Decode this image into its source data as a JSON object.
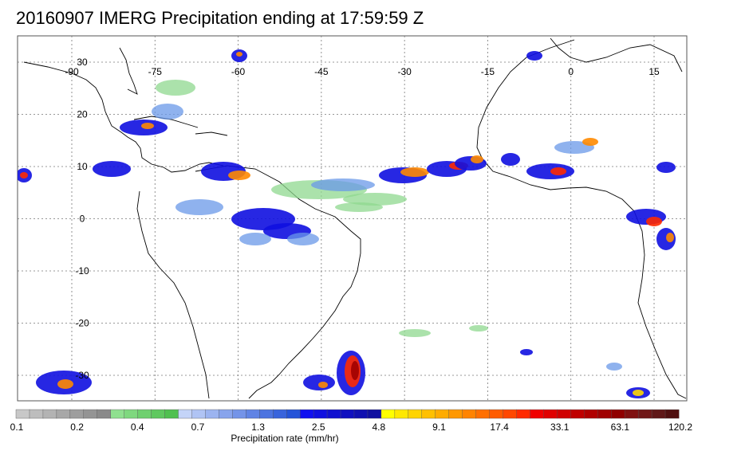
{
  "title": "20160907 IMERG Precipitation ending at 17:59:59 Z",
  "map": {
    "lon_range": [
      -100,
      30
    ],
    "lat_range": [
      -38,
      35
    ],
    "lon_ticks": [
      {
        "value": -90,
        "label": "-90"
      },
      {
        "value": -75,
        "label": "-75"
      },
      {
        "value": -60,
        "label": "-60"
      },
      {
        "value": -45,
        "label": "-45"
      },
      {
        "value": -30,
        "label": "-30"
      },
      {
        "value": -15,
        "label": "-15"
      },
      {
        "value": 0,
        "label": "0"
      },
      {
        "value": 15,
        "label": "15"
      }
    ],
    "lat_ticks": [
      {
        "value": 30,
        "label": "30"
      },
      {
        "value": 20,
        "label": "20"
      },
      {
        "value": 10,
        "label": "10"
      },
      {
        "value": 0,
        "label": "0"
      },
      {
        "value": -10,
        "label": "-10"
      },
      {
        "value": -20,
        "label": "-20"
      },
      {
        "value": -30,
        "label": "-30"
      }
    ],
    "grid": "dotted"
  },
  "colorbar": {
    "label": "Precipitation rate (mm/hr)",
    "tick_labels": [
      "0.1",
      "0.2",
      "0.4",
      "0.7",
      "1.3",
      "2.5",
      "4.8",
      "9.1",
      "17.4",
      "33.1",
      "63.1",
      "120.2"
    ],
    "colors": [
      "#c8c8c8",
      "#bdbdbd",
      "#b3b3b3",
      "#a8a8a8",
      "#9e9e9e",
      "#949494",
      "#8a8a8a",
      "#8fe08f",
      "#7fd87f",
      "#6fd06f",
      "#5fc85f",
      "#50c050",
      "#c4d4f8",
      "#b0c4f4",
      "#9cb4f0",
      "#88a4ec",
      "#7494e8",
      "#6084e4",
      "#4c74e0",
      "#3864dc",
      "#2454d8",
      "#1010f0",
      "#1010e0",
      "#1010d0",
      "#1010c0",
      "#1010b0",
      "#1010a0",
      "#ffff00",
      "#ffe800",
      "#ffd400",
      "#ffc000",
      "#ffac00",
      "#ff9800",
      "#ff8400",
      "#ff7000",
      "#ff5c00",
      "#ff4800",
      "#ff2a00",
      "#f00000",
      "#e00000",
      "#d00000",
      "#c00000",
      "#b00000",
      "#a00000",
      "#900000",
      "#801010",
      "#701818",
      "#601818",
      "#501010"
    ]
  }
}
